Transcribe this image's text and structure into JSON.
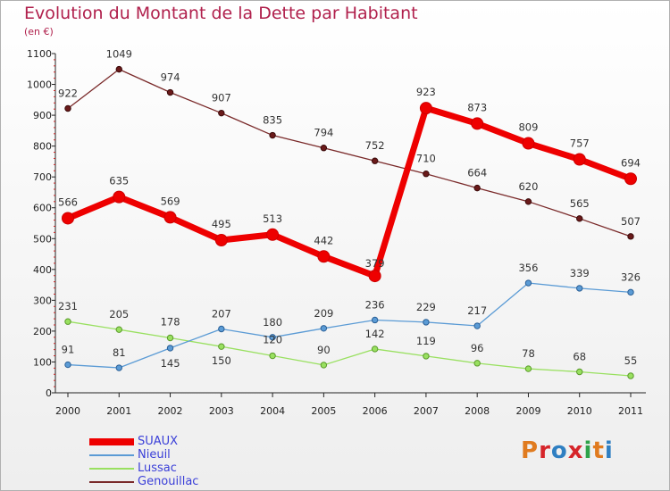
{
  "header": {
    "title": "Evolution du Montant de la Dette par Habitant",
    "subtitle": "(en €)"
  },
  "logo": {
    "text": "Proxiti",
    "colors": [
      "#e07b1f",
      "#d6252a",
      "#2f7fc2",
      "#d6252a",
      "#2ea34a",
      "#e07b1f",
      "#2f7fc2"
    ]
  },
  "chart_data": {
    "type": "line",
    "title": "Evolution du Montant de la Dette par Habitant",
    "subtitle": "(en €)",
    "xlabel": "",
    "ylabel": "",
    "x": [
      "2000",
      "2001",
      "2002",
      "2003",
      "2004",
      "2005",
      "2006",
      "2007",
      "2008",
      "2009",
      "2010",
      "2011"
    ],
    "ylim": [
      0,
      1100
    ],
    "yticks": [
      0,
      100,
      200,
      300,
      400,
      500,
      600,
      700,
      800,
      900,
      1000,
      1100
    ],
    "grid": false,
    "legend_position": "bottom-left",
    "series": [
      {
        "name": "SUAUX",
        "color": "#ee0000",
        "values": [
          566,
          635,
          569,
          495,
          513,
          442,
          379,
          923,
          873,
          809,
          757,
          694
        ]
      },
      {
        "name": "Nieuil",
        "color": "#5b9bd5",
        "values": [
          91,
          81,
          145,
          207,
          180,
          209,
          236,
          229,
          217,
          356,
          339,
          326
        ]
      },
      {
        "name": "Lussac",
        "color": "#99e060",
        "values": [
          231,
          205,
          178,
          150,
          120,
          90,
          142,
          119,
          96,
          78,
          68,
          55
        ]
      },
      {
        "name": "Genouillac",
        "color": "#7a2a2a",
        "values": [
          922,
          1049,
          974,
          907,
          835,
          794,
          752,
          710,
          664,
          620,
          565,
          507
        ]
      }
    ]
  }
}
